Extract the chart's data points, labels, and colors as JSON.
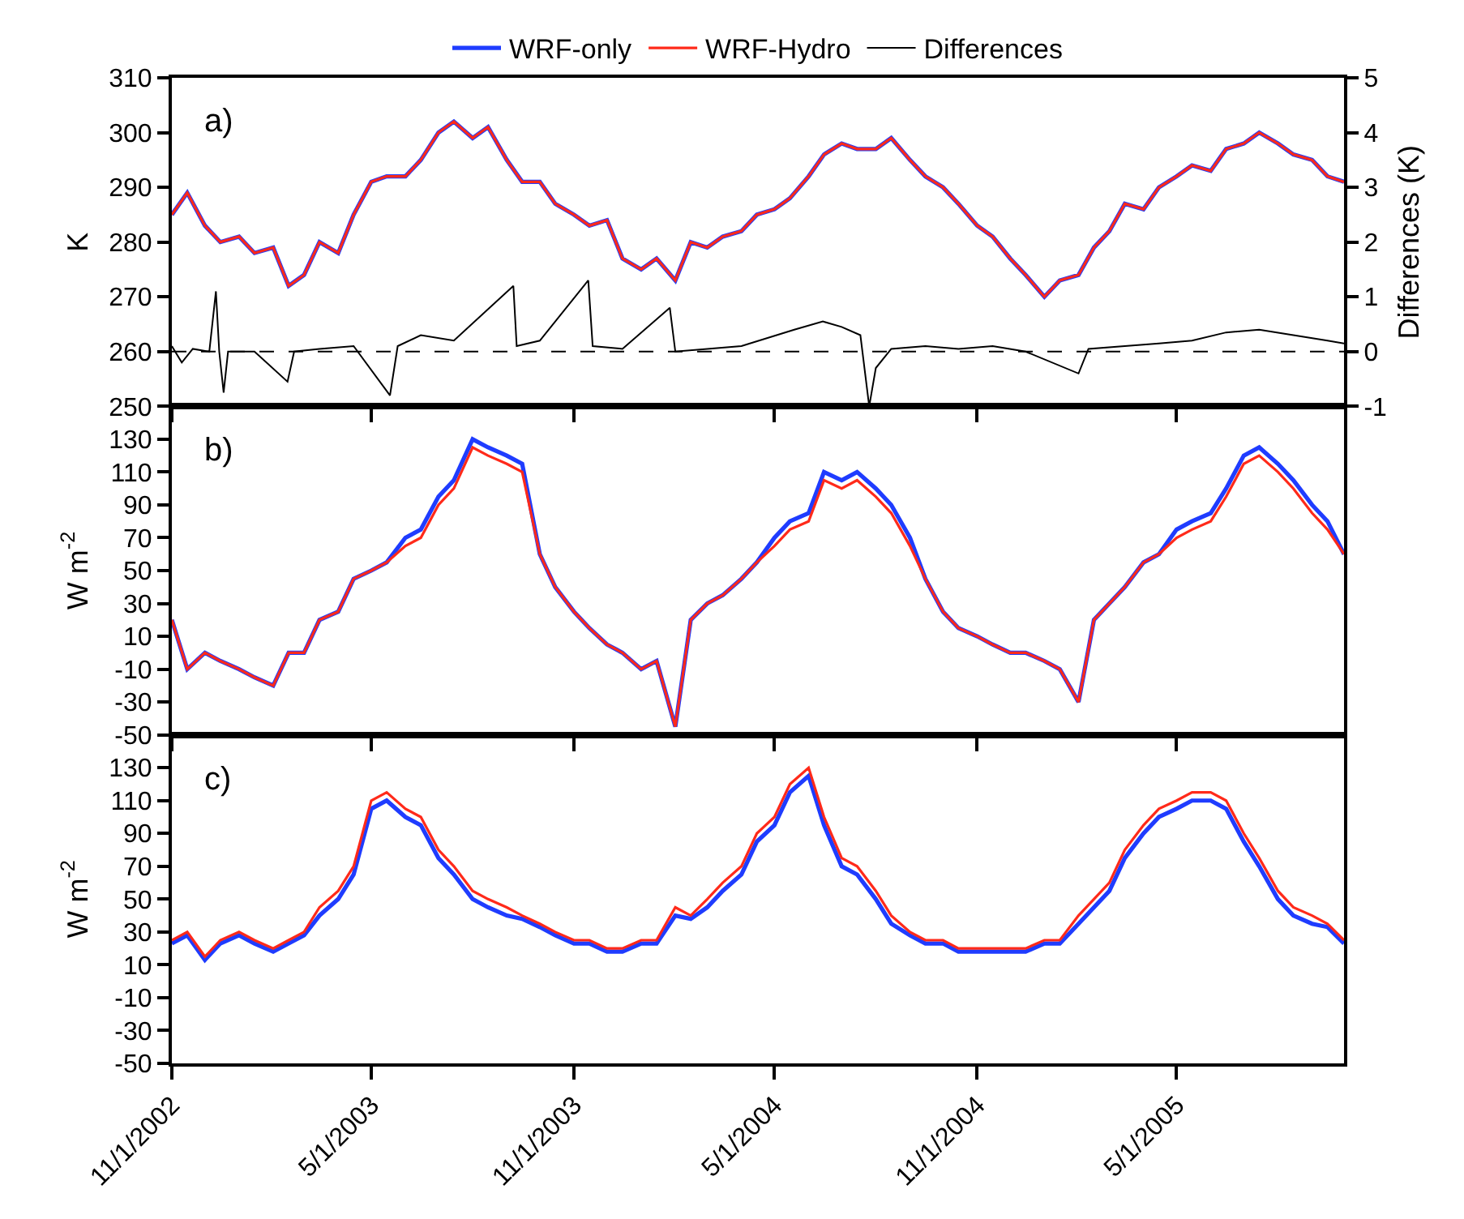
{
  "chart_data": [
    {
      "type": "line",
      "ylabel": "K",
      "y2label": "Differences (K)",
      "annotations": [
        "a)"
      ],
      "legend": "top",
      "tick_labels": "y",
      "x": [
        "2002-11-01",
        "2002-11-15",
        "2002-12-01",
        "2002-12-15",
        "2003-01-01",
        "2003-01-15",
        "2003-02-01",
        "2003-02-15",
        "2003-03-01",
        "2003-03-15",
        "2003-04-01",
        "2003-04-15",
        "2003-05-01",
        "2003-05-15",
        "2003-06-01",
        "2003-06-15",
        "2003-07-01",
        "2003-07-15",
        "2003-08-01",
        "2003-08-15",
        "2003-09-01",
        "2003-09-15",
        "2003-10-01",
        "2003-10-15",
        "2003-11-01",
        "2003-11-15",
        "2003-12-01",
        "2003-12-15",
        "2004-01-01",
        "2004-01-15",
        "2004-02-01",
        "2004-02-15",
        "2004-03-01",
        "2004-03-15",
        "2004-04-01",
        "2004-04-15",
        "2004-05-01",
        "2004-05-15",
        "2004-06-01",
        "2004-06-15",
        "2004-07-01",
        "2004-07-15",
        "2004-08-01",
        "2004-08-15",
        "2004-09-01",
        "2004-09-15",
        "2004-10-01",
        "2004-10-15",
        "2004-11-01",
        "2004-11-15",
        "2004-12-01",
        "2004-12-15",
        "2005-01-01",
        "2005-01-15",
        "2005-02-01",
        "2005-02-15",
        "2005-03-01",
        "2005-03-15",
        "2005-04-01",
        "2005-04-15",
        "2005-05-01",
        "2005-05-15",
        "2005-06-01",
        "2005-06-15",
        "2005-07-01",
        "2005-07-15",
        "2005-08-01",
        "2005-08-15",
        "2005-09-01",
        "2005-09-15",
        "2005-09-30"
      ],
      "series": [
        {
          "name": "WRF-only",
          "color": "#1f3cff",
          "values": [
            285,
            289,
            283,
            280,
            281,
            278,
            279,
            272,
            274,
            280,
            278,
            285,
            291,
            292,
            292,
            295,
            300,
            302,
            299,
            301,
            295,
            291,
            291,
            287,
            285,
            283,
            284,
            277,
            275,
            277,
            273,
            280,
            279,
            281,
            282,
            285,
            286,
            288,
            292,
            296,
            298,
            297,
            297,
            299,
            295,
            292,
            290,
            287,
            283,
            281,
            277,
            274,
            270,
            273,
            274,
            279,
            282,
            287,
            286,
            290,
            292,
            294,
            293,
            297,
            298,
            300,
            298,
            296,
            295,
            292,
            291
          ]
        },
        {
          "name": "WRF-Hydro",
          "color": "#ff2a1a",
          "values": [
            285,
            289,
            283,
            280,
            281,
            278,
            279,
            272,
            274,
            280,
            278,
            285,
            291,
            292,
            292,
            295,
            300,
            302,
            299,
            301,
            295,
            291,
            291,
            287,
            285,
            283,
            284,
            277,
            275,
            277,
            273,
            280,
            279,
            281,
            282,
            285,
            286,
            288,
            292,
            296,
            298,
            297,
            297,
            299,
            295,
            292,
            290,
            287,
            283,
            281,
            277,
            274,
            270,
            273,
            274,
            279,
            282,
            287,
            286,
            290,
            292,
            294,
            293,
            297,
            298,
            300,
            298,
            296,
            295,
            292,
            291
          ]
        },
        {
          "name": "Differences",
          "color": "#000000",
          "axis": "y2",
          "x": [
            "2002-11-01",
            "2002-11-10",
            "2002-11-20",
            "2002-12-05",
            "2002-12-11",
            "2002-12-14",
            "2002-12-18",
            "2002-12-22",
            "2003-01-15",
            "2003-02-14",
            "2003-02-20",
            "2003-03-15",
            "2003-04-15",
            "2003-05-18",
            "2003-05-25",
            "2003-06-15",
            "2003-07-15",
            "2003-09-07",
            "2003-09-10",
            "2003-10-01",
            "2003-11-14",
            "2003-11-18",
            "2003-12-15",
            "2004-01-27",
            "2004-02-01",
            "2004-03-01",
            "2004-04-01",
            "2004-05-19",
            "2004-06-14",
            "2004-07-01",
            "2004-07-18",
            "2004-07-26",
            "2004-08-01",
            "2004-08-15",
            "2004-09-15",
            "2004-10-15",
            "2004-11-15",
            "2004-12-15",
            "2005-02-01",
            "2005-02-10",
            "2005-03-15",
            "2005-04-15",
            "2005-05-15",
            "2005-06-15",
            "2005-07-15",
            "2005-08-15",
            "2005-09-15",
            "2005-09-30"
          ],
          "values": [
            0.1,
            -0.2,
            0.05,
            0.0,
            1.1,
            0.0,
            -0.75,
            0.0,
            0.0,
            -0.55,
            0.0,
            0.05,
            0.1,
            -0.8,
            0.1,
            0.3,
            0.2,
            1.2,
            0.1,
            0.2,
            1.3,
            0.1,
            0.05,
            0.8,
            0.0,
            0.05,
            0.1,
            0.4,
            0.55,
            0.45,
            0.3,
            -1.0,
            -0.3,
            0.05,
            0.1,
            0.05,
            0.1,
            0.0,
            -0.4,
            0.05,
            0.1,
            0.15,
            0.2,
            0.35,
            0.4,
            0.3,
            0.2,
            0.15
          ]
        }
      ],
      "ref_lines": [
        {
          "axis": "y2",
          "value": 0,
          "color": "#000000",
          "line_style": "dashed"
        }
      ],
      "xlim": [
        "2002-11-01",
        "2005-09-30"
      ],
      "xticks": [
        {
          "value": "2002-11-01",
          "label": null
        },
        {
          "value": "2003-05-01",
          "label": null
        },
        {
          "value": "2003-11-01",
          "label": null
        },
        {
          "value": "2004-05-01",
          "label": null
        },
        {
          "value": "2004-11-01",
          "label": null
        },
        {
          "value": "2005-05-01",
          "label": null
        }
      ],
      "ylim": [
        250,
        310
      ],
      "yticks": [
        250,
        260,
        270,
        280,
        290,
        300,
        310
      ],
      "y2lim": [
        -1,
        5
      ],
      "y2ticks": [
        -1,
        0,
        1,
        2,
        3,
        4,
        5
      ]
    },
    {
      "type": "line",
      "ylabel": "W m$^{-2}$",
      "annotations": [
        "b)"
      ],
      "tick_labels": "y",
      "x": [
        "2002-11-01",
        "2002-11-15",
        "2002-12-01",
        "2002-12-15",
        "2003-01-01",
        "2003-01-15",
        "2003-02-01",
        "2003-02-15",
        "2003-03-01",
        "2003-03-15",
        "2003-04-01",
        "2003-04-15",
        "2003-05-01",
        "2003-05-15",
        "2003-06-01",
        "2003-06-15",
        "2003-07-01",
        "2003-07-15",
        "2003-08-01",
        "2003-08-15",
        "2003-09-01",
        "2003-09-15",
        "2003-10-01",
        "2003-10-15",
        "2003-11-01",
        "2003-11-15",
        "2003-12-01",
        "2003-12-15",
        "2004-01-01",
        "2004-01-15",
        "2004-02-01",
        "2004-02-15",
        "2004-03-01",
        "2004-03-15",
        "2004-04-01",
        "2004-04-15",
        "2004-05-01",
        "2004-05-15",
        "2004-06-01",
        "2004-06-15",
        "2004-07-01",
        "2004-07-15",
        "2004-08-01",
        "2004-08-15",
        "2004-09-01",
        "2004-09-15",
        "2004-10-01",
        "2004-10-15",
        "2004-11-01",
        "2004-11-15",
        "2004-12-01",
        "2004-12-15",
        "2005-01-01",
        "2005-01-15",
        "2005-02-01",
        "2005-02-15",
        "2005-03-01",
        "2005-03-15",
        "2005-04-01",
        "2005-04-15",
        "2005-05-01",
        "2005-05-15",
        "2005-06-01",
        "2005-06-15",
        "2005-07-01",
        "2005-07-15",
        "2005-08-01",
        "2005-08-15",
        "2005-09-01",
        "2005-09-15",
        "2005-09-30"
      ],
      "series": [
        {
          "color": "#1f3cff",
          "values": [
            20,
            -10,
            0,
            -5,
            -10,
            -15,
            -20,
            0,
            0,
            20,
            25,
            45,
            50,
            55,
            70,
            75,
            95,
            105,
            130,
            125,
            120,
            115,
            60,
            40,
            25,
            15,
            5,
            0,
            -10,
            -5,
            -45,
            20,
            30,
            35,
            45,
            55,
            70,
            80,
            85,
            110,
            105,
            110,
            100,
            90,
            70,
            45,
            25,
            15,
            10,
            5,
            0,
            0,
            -5,
            -10,
            -30,
            20,
            30,
            40,
            55,
            60,
            75,
            80,
            85,
            100,
            120,
            125,
            115,
            105,
            90,
            80,
            60
          ]
        },
        {
          "color": "#ff2a1a",
          "values": [
            20,
            -10,
            0,
            -5,
            -10,
            -15,
            -20,
            0,
            0,
            20,
            25,
            45,
            50,
            55,
            65,
            70,
            90,
            100,
            125,
            120,
            115,
            110,
            60,
            40,
            25,
            15,
            5,
            0,
            -10,
            -5,
            -45,
            20,
            30,
            35,
            45,
            55,
            65,
            75,
            80,
            105,
            100,
            105,
            95,
            85,
            65,
            45,
            25,
            15,
            10,
            5,
            0,
            0,
            -5,
            -10,
            -30,
            20,
            30,
            40,
            55,
            60,
            70,
            75,
            80,
            95,
            115,
            120,
            110,
            100,
            85,
            75,
            60
          ]
        }
      ],
      "xlim": [
        "2002-11-01",
        "2005-09-30"
      ],
      "xticks": [
        {
          "value": "2002-11-01",
          "label": null
        },
        {
          "value": "2003-05-01",
          "label": null
        },
        {
          "value": "2003-11-01",
          "label": null
        },
        {
          "value": "2004-05-01",
          "label": null
        },
        {
          "value": "2004-11-01",
          "label": null
        },
        {
          "value": "2005-05-01",
          "label": null
        }
      ],
      "ylim": [
        -50,
        150
      ],
      "yticks": [
        -50,
        -30,
        -10,
        10,
        30,
        50,
        70,
        90,
        110,
        130
      ]
    },
    {
      "type": "line",
      "ylabel": "W m$^{-2}$",
      "annotations": [
        "c)"
      ],
      "x": [
        "2002-11-01",
        "2002-11-15",
        "2002-12-01",
        "2002-12-15",
        "2003-01-01",
        "2003-01-15",
        "2003-02-01",
        "2003-02-15",
        "2003-03-01",
        "2003-03-15",
        "2003-04-01",
        "2003-04-15",
        "2003-05-01",
        "2003-05-15",
        "2003-06-01",
        "2003-06-15",
        "2003-07-01",
        "2003-07-15",
        "2003-08-01",
        "2003-08-15",
        "2003-09-01",
        "2003-09-15",
        "2003-10-01",
        "2003-10-15",
        "2003-11-01",
        "2003-11-15",
        "2003-12-01",
        "2003-12-15",
        "2004-01-01",
        "2004-01-15",
        "2004-02-01",
        "2004-02-15",
        "2004-03-01",
        "2004-03-15",
        "2004-04-01",
        "2004-04-15",
        "2004-05-01",
        "2004-05-15",
        "2004-06-01",
        "2004-06-15",
        "2004-07-01",
        "2004-07-15",
        "2004-08-01",
        "2004-08-15",
        "2004-09-01",
        "2004-09-15",
        "2004-10-01",
        "2004-10-15",
        "2004-11-01",
        "2004-11-15",
        "2004-12-01",
        "2004-12-15",
        "2005-01-01",
        "2005-01-15",
        "2005-02-01",
        "2005-02-15",
        "2005-03-01",
        "2005-03-15",
        "2005-04-01",
        "2005-04-15",
        "2005-05-01",
        "2005-05-15",
        "2005-06-01",
        "2005-06-15",
        "2005-07-01",
        "2005-07-15",
        "2005-08-01",
        "2005-08-15",
        "2005-09-01",
        "2005-09-15",
        "2005-09-30"
      ],
      "series": [
        {
          "color": "#1f3cff",
          "values": [
            23,
            28,
            13,
            23,
            28,
            23,
            18,
            23,
            28,
            40,
            50,
            65,
            105,
            110,
            100,
            95,
            75,
            65,
            50,
            45,
            40,
            38,
            33,
            28,
            23,
            23,
            18,
            18,
            23,
            23,
            40,
            38,
            45,
            55,
            65,
            85,
            95,
            115,
            125,
            95,
            70,
            65,
            50,
            35,
            28,
            23,
            23,
            18,
            18,
            18,
            18,
            18,
            23,
            23,
            35,
            45,
            55,
            75,
            90,
            100,
            105,
            110,
            110,
            105,
            85,
            70,
            50,
            40,
            35,
            33,
            23
          ]
        },
        {
          "color": "#ff2a1a",
          "values": [
            25,
            30,
            15,
            25,
            30,
            25,
            20,
            25,
            30,
            45,
            55,
            70,
            110,
            115,
            105,
            100,
            80,
            70,
            55,
            50,
            45,
            40,
            35,
            30,
            25,
            25,
            20,
            20,
            25,
            25,
            45,
            40,
            50,
            60,
            70,
            90,
            100,
            120,
            130,
            100,
            75,
            70,
            55,
            40,
            30,
            25,
            25,
            20,
            20,
            20,
            20,
            20,
            25,
            25,
            40,
            50,
            60,
            80,
            95,
            105,
            110,
            115,
            115,
            110,
            90,
            75,
            55,
            45,
            40,
            35,
            25
          ]
        }
      ],
      "xlim": [
        "2002-11-01",
        "2005-09-30"
      ],
      "xticks": [
        {
          "value": "2002-11-01",
          "label": "11/1/2002"
        },
        {
          "value": "2003-05-01",
          "label": "5/1/2003"
        },
        {
          "value": "2003-11-01",
          "label": "11/1/2003"
        },
        {
          "value": "2004-05-01",
          "label": "5/1/2004"
        },
        {
          "value": "2004-11-01",
          "label": "11/1/2004"
        },
        {
          "value": "2005-05-01",
          "label": "5/1/2005"
        }
      ],
      "ylim": [
        -50,
        150
      ],
      "yticks": [
        -50,
        -30,
        -10,
        10,
        30,
        50,
        70,
        90,
        110,
        130
      ]
    }
  ]
}
